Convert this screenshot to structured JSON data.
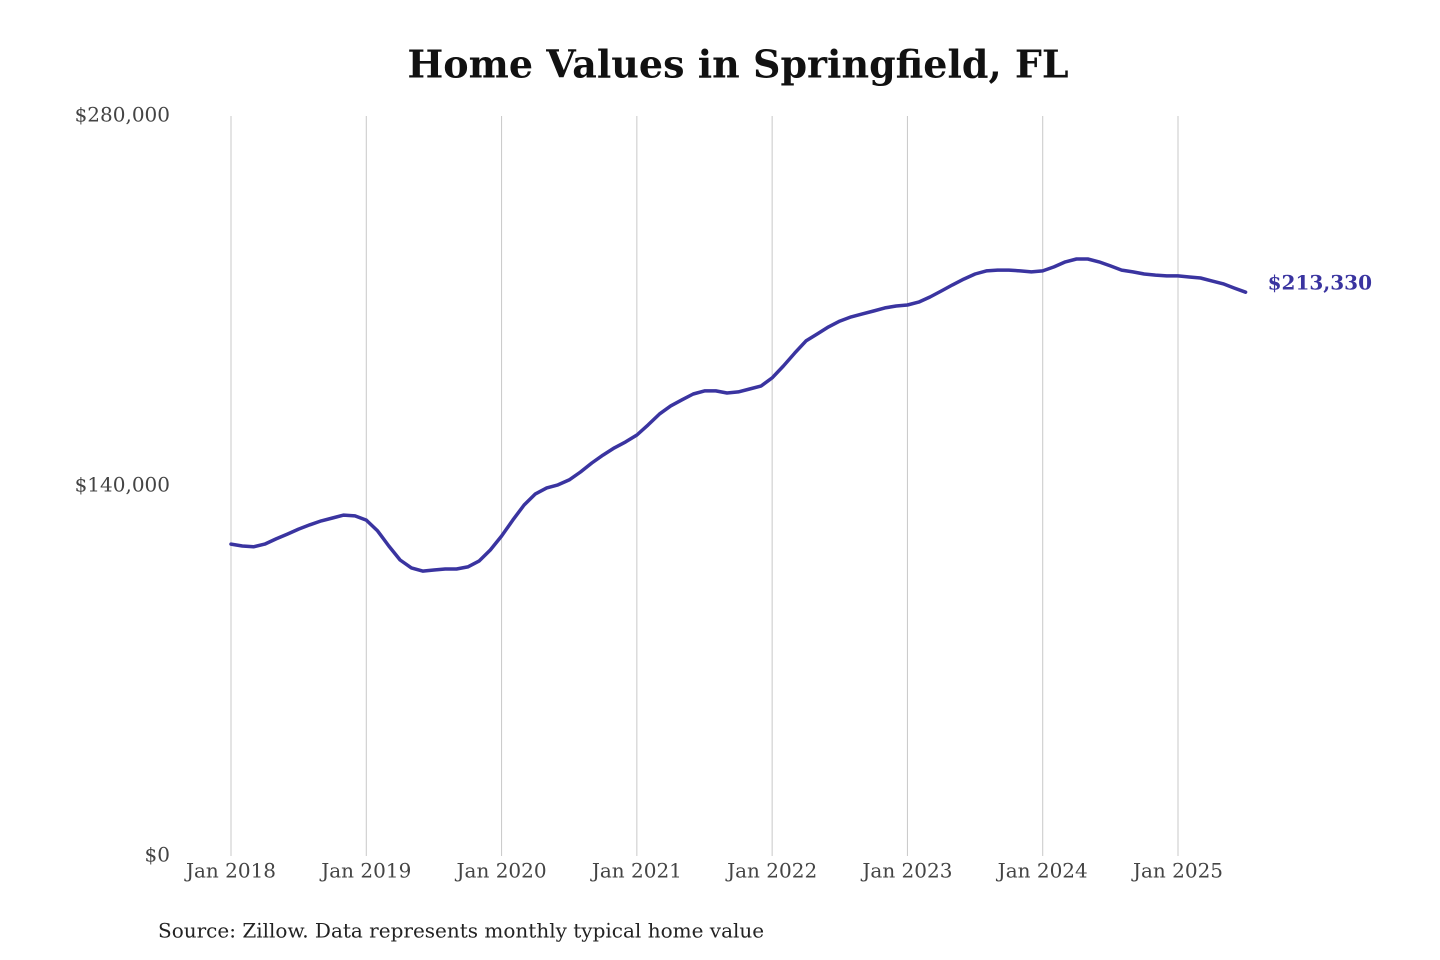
{
  "chart_data": {
    "type": "line",
    "title": "Home Values in Springfield, FL",
    "source": "Source: Zillow. Data represents monthly typical home value",
    "categories": [
      "Jan 2018",
      null,
      null,
      null,
      null,
      null,
      null,
      null,
      null,
      null,
      null,
      null,
      "Jan 2019",
      null,
      null,
      null,
      null,
      null,
      null,
      null,
      null,
      null,
      null,
      null,
      "Jan 2020",
      null,
      null,
      null,
      null,
      null,
      null,
      null,
      null,
      null,
      null,
      null,
      "Jan 2021",
      null,
      null,
      null,
      null,
      null,
      null,
      null,
      null,
      null,
      null,
      null,
      "Jan 2022",
      null,
      null,
      null,
      null,
      null,
      null,
      null,
      null,
      null,
      null,
      null,
      "Jan 2023",
      null,
      null,
      null,
      null,
      null,
      null,
      null,
      null,
      null,
      null,
      null,
      "Jan 2024",
      null,
      null,
      null,
      null,
      null,
      null,
      null,
      null,
      null,
      null,
      null,
      "Jan 2025",
      null,
      null,
      null,
      null,
      null,
      null
    ],
    "values": [
      118000,
      117300,
      117000,
      118000,
      120000,
      121800,
      123700,
      125300,
      126800,
      127900,
      129000,
      128700,
      127100,
      123000,
      117300,
      112000,
      109000,
      107800,
      108200,
      108600,
      108600,
      109400,
      111600,
      115800,
      121100,
      127100,
      132800,
      137000,
      139300,
      140400,
      142300,
      145300,
      148700,
      151700,
      154400,
      156700,
      159300,
      163100,
      167200,
      170300,
      172600,
      174800,
      176000,
      176000,
      175200,
      175600,
      176700,
      177800,
      180900,
      185400,
      190300,
      194900,
      197500,
      200200,
      202400,
      204000,
      205100,
      206200,
      207400,
      208100,
      208500,
      209600,
      211500,
      213800,
      216100,
      218300,
      220200,
      221400,
      221700,
      221700,
      221400,
      221000,
      221400,
      222900,
      224800,
      225900,
      225900,
      224800,
      223300,
      221700,
      221000,
      220200,
      219800,
      219500,
      219500,
      219100,
      218700,
      217600,
      216500,
      214900,
      213330
    ],
    "value_labels": [
      null,
      null,
      null,
      null,
      null,
      null,
      null,
      null,
      null,
      null,
      null,
      null,
      null,
      null,
      null,
      null,
      null,
      null,
      null,
      null,
      null,
      null,
      null,
      null,
      null,
      null,
      null,
      null,
      null,
      null,
      null,
      null,
      null,
      null,
      null,
      null,
      null,
      null,
      null,
      null,
      null,
      null,
      null,
      null,
      null,
      null,
      null,
      null,
      null,
      null,
      null,
      null,
      null,
      null,
      null,
      null,
      null,
      null,
      null,
      null,
      null,
      null,
      null,
      null,
      null,
      null,
      null,
      null,
      null,
      null,
      null,
      null,
      null,
      null,
      null,
      null,
      null,
      null,
      null,
      null,
      null,
      null,
      null,
      null,
      null,
      null,
      null,
      null,
      null,
      null,
      "$213,330"
    ],
    "color": "#3a34a0",
    "ylim": [
      0,
      280000
    ],
    "yticks": [
      {
        "value": 0,
        "label": "$0"
      },
      {
        "value": 140000,
        "label": "$140,000"
      },
      {
        "value": 280000,
        "label": "$280,000"
      }
    ],
    "grid": true
  }
}
